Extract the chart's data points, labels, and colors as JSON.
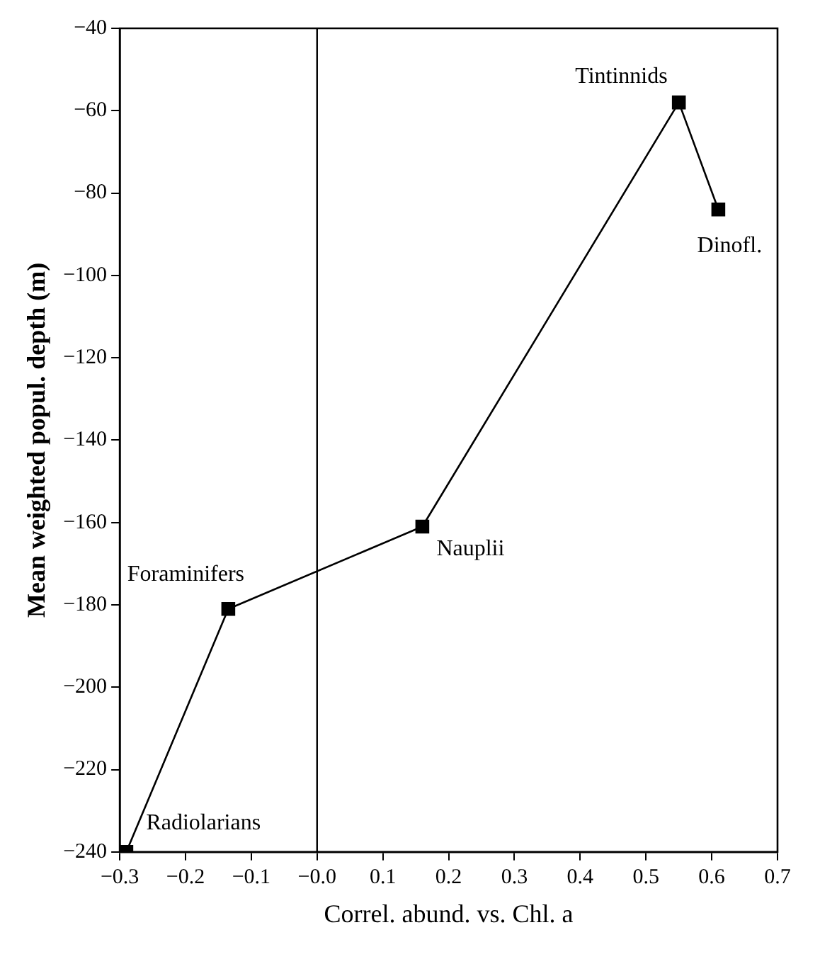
{
  "chart_data": {
    "type": "line",
    "xlabel": "Correl. abund. vs. Chl. a",
    "ylabel": "Mean weighted popul. depth (m)",
    "x": [
      -0.29,
      -0.135,
      0.16,
      0.55,
      0.61
    ],
    "series": [
      {
        "color": "#000000",
        "values": [
          -240,
          -181,
          -161,
          -58,
          -84
        ]
      }
    ],
    "marker": "square",
    "line_style": "solid",
    "grid": false,
    "legend": false,
    "xlim": [
      -0.3,
      0.7
    ],
    "xticks": [
      {
        "value": -0.3,
        "label": "−0.3"
      },
      {
        "value": -0.2,
        "label": "−0.2"
      },
      {
        "value": -0.1,
        "label": "−0.1"
      },
      {
        "value": 0,
        "label": "−0.0"
      },
      0.1,
      0.2,
      0.3,
      0.4,
      0.5,
      0.6,
      0.7
    ],
    "ylim": [
      -240,
      -40
    ],
    "yticks": [
      {
        "value": -240,
        "label": "−240"
      },
      {
        "value": -220,
        "label": "−220"
      },
      {
        "value": -200,
        "label": "−200"
      },
      {
        "value": -180,
        "label": "−180"
      },
      {
        "value": -160,
        "label": "−160"
      },
      {
        "value": -140,
        "label": "−140"
      },
      {
        "value": -120,
        "label": "−120"
      },
      {
        "value": -100,
        "label": "−100"
      },
      {
        "value": -80,
        "label": "−80"
      },
      {
        "value": -60,
        "label": "−60"
      },
      {
        "value": -40,
        "label": "−40"
      }
    ],
    "ref_lines": [
      {
        "axis": "x",
        "value": 0
      }
    ],
    "annotations": [
      {
        "text": "Radiolarians",
        "x": -0.29,
        "y": -240
      },
      {
        "text": "Foraminifers",
        "x": -0.135,
        "y": -181
      },
      {
        "text": "Nauplii",
        "x": 0.16,
        "y": -161
      },
      {
        "text": "Tintinnids",
        "x": 0.55,
        "y": -58
      },
      {
        "text": "Dinofl.",
        "x": 0.61,
        "y": -84
      }
    ]
  }
}
